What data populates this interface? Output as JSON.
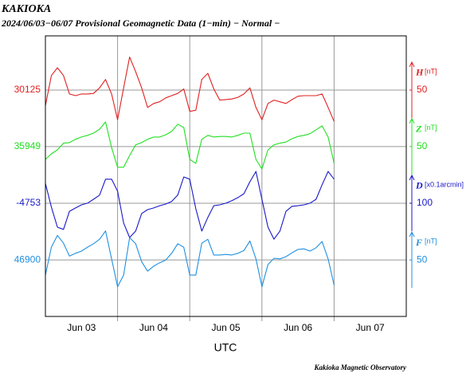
{
  "chart_data": {
    "type": "line",
    "title": "KAKIOKA",
    "subtitle": "2024/06/03−06/07  Provisional Geomagnetic Data (1−min)  − Normal −",
    "x_label": "UTC",
    "credit": "Kakioka Magnetic Observatory",
    "x": [
      0,
      2,
      4,
      6,
      8,
      10,
      12,
      14,
      16,
      18,
      20,
      22,
      24,
      26,
      28,
      30,
      32,
      34,
      36,
      38,
      40,
      42,
      44,
      46,
      48,
      50,
      52,
      54,
      56,
      58,
      60,
      62,
      64,
      66,
      68,
      70,
      72,
      74,
      76,
      78,
      80,
      82,
      84,
      86,
      88,
      90,
      92,
      94,
      96
    ],
    "xlim": [
      0,
      120
    ],
    "xticks": [
      {
        "value": 12,
        "label": "Jun 03"
      },
      {
        "value": 36,
        "label": "Jun 04"
      },
      {
        "value": 60,
        "label": "Jun 05"
      },
      {
        "value": 84,
        "label": "Jun 06"
      },
      {
        "value": 108,
        "label": "Jun 07"
      }
    ],
    "xgrid": [
      24,
      48,
      72,
      96
    ],
    "grid": true,
    "series": [
      {
        "name": "H",
        "unit": "[nT]",
        "color": "#e02020",
        "ylim": [
          29720,
          30222
        ],
        "yticks": [
          30125
        ],
        "scale": 50,
        "values": [
          30097,
          30151,
          30165,
          30151,
          30118,
          30115,
          30118,
          30118,
          30119,
          30129,
          30144,
          30118,
          30072,
          30129,
          30184,
          30158,
          30129,
          30094,
          30101,
          30104,
          30111,
          30115,
          30119,
          30127,
          30087,
          30089,
          30144,
          30155,
          30127,
          30107,
          30108,
          30109,
          30112,
          30118,
          30129,
          30094,
          30072,
          30101,
          30107,
          30104,
          30101,
          30108,
          30114,
          30115,
          30115,
          30115,
          30118,
          30094,
          30069
        ]
      },
      {
        "name": "Z",
        "unit": "[nT]",
        "color": "#20e020",
        "ylim": [
          35645,
          36147
        ],
        "yticks": [
          35949
        ],
        "scale": 50,
        "values": [
          35926,
          35936,
          35943,
          35955,
          35956,
          35962,
          35966,
          35969,
          35973,
          35980,
          35993,
          35947,
          35912,
          35912,
          35933,
          35952,
          35956,
          35962,
          35966,
          35966,
          35970,
          35976,
          35989,
          35983,
          35926,
          35919,
          35962,
          35969,
          35966,
          35967,
          35967,
          35966,
          35969,
          35973,
          35973,
          35926,
          35909,
          35943,
          35952,
          35955,
          35957,
          35963,
          35967,
          35969,
          35972,
          35979,
          35986,
          35966,
          35919
        ]
      },
      {
        "name": "D",
        "unit": "[x0.1arcmin]",
        "color": "#1818c8",
        "ylim": [
          -5159,
          -4153
        ],
        "yticks": [
          -4753
        ],
        "scale": 100,
        "values": [
          -4682,
          -4767,
          -4839,
          -4847,
          -4782,
          -4770,
          -4759,
          -4753,
          -4739,
          -4724,
          -4667,
          -4667,
          -4710,
          -4824,
          -4876,
          -4853,
          -4790,
          -4776,
          -4770,
          -4762,
          -4756,
          -4747,
          -4724,
          -4659,
          -4667,
          -4773,
          -4853,
          -4804,
          -4762,
          -4759,
          -4753,
          -4744,
          -4733,
          -4719,
          -4676,
          -4639,
          -4739,
          -4839,
          -4882,
          -4853,
          -4782,
          -4764,
          -4762,
          -4759,
          -4753,
          -4739,
          -4687,
          -4639,
          -4667
        ]
      },
      {
        "name": "F",
        "unit": "[nT]",
        "color": "#2090e0",
        "ylim": [
          46799,
          47301
        ],
        "yticks": [
          46900
        ],
        "scale": 50,
        "values": [
          46873,
          46923,
          46944,
          46930,
          46907,
          46912,
          46916,
          46923,
          46929,
          46937,
          46952,
          46902,
          46852,
          46873,
          46940,
          46929,
          46897,
          46880,
          46889,
          46895,
          46900,
          46912,
          46929,
          46923,
          46873,
          46873,
          46930,
          46937,
          46909,
          46909,
          46910,
          46909,
          46912,
          46917,
          46934,
          46902,
          46852,
          46892,
          46903,
          46902,
          46906,
          46913,
          46919,
          46920,
          46916,
          46922,
          46933,
          46902,
          46855
        ]
      }
    ]
  }
}
